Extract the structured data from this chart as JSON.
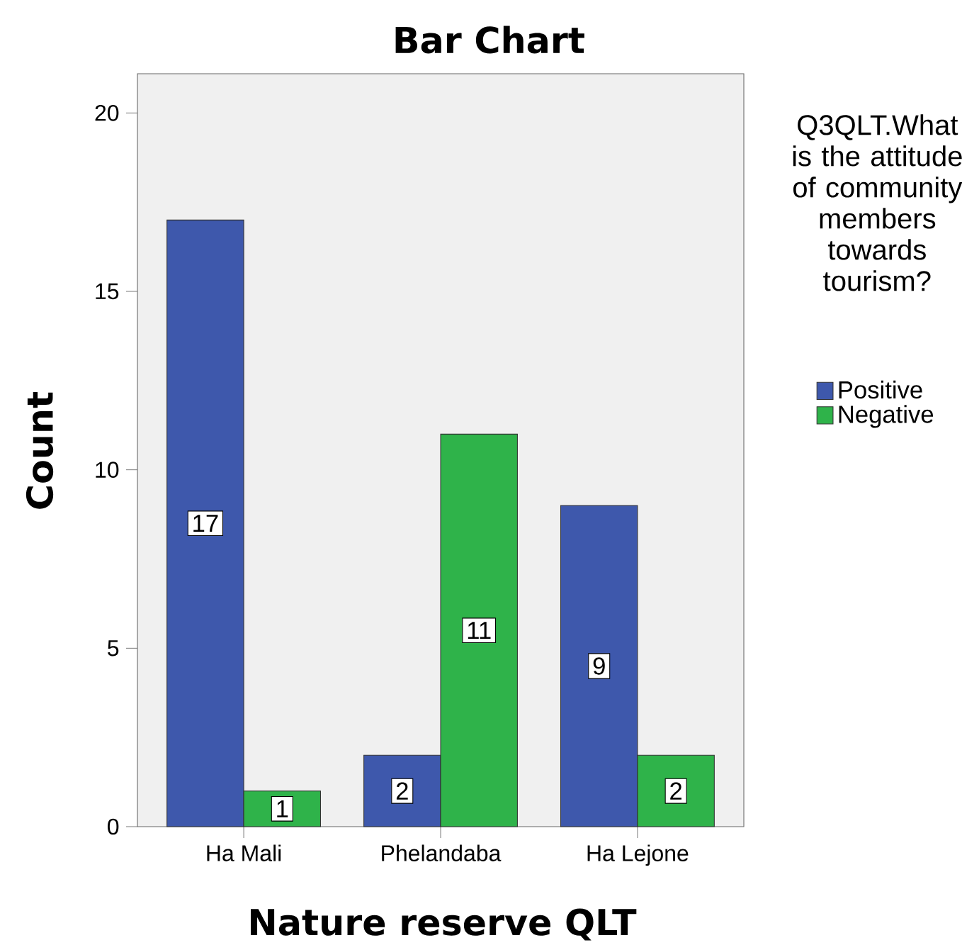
{
  "chart_data": {
    "type": "bar",
    "title": "Bar Chart",
    "xlabel": "Nature reserve QLT",
    "ylabel": "Count",
    "legend_title": "Q3QLT.What is the attitude of community members towards tourism?",
    "categories": [
      "Ha Mali",
      "Phelandaba",
      "Ha Lejone"
    ],
    "series": [
      {
        "name": "Positive",
        "color": "#3e58ac",
        "values": [
          17,
          2,
          9
        ]
      },
      {
        "name": "Negative",
        "color": "#2fb34a",
        "values": [
          1,
          11,
          2
        ]
      }
    ],
    "ylim": [
      0,
      21.1
    ],
    "yticks": [
      0,
      5,
      10,
      15,
      20
    ],
    "data_labels": true,
    "legend": "right"
  }
}
